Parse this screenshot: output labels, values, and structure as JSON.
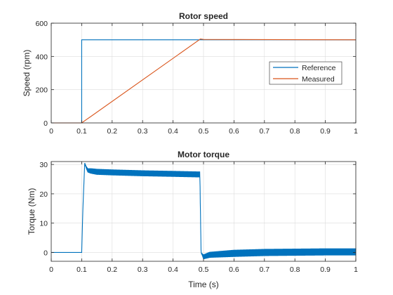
{
  "chart_data": [
    {
      "type": "line",
      "title": "Rotor speed",
      "xlabel": "",
      "ylabel": "Speed (rpm)",
      "xlim": [
        0,
        1
      ],
      "ylim": [
        0,
        600
      ],
      "xticks": [
        0,
        0.1,
        0.2,
        0.3,
        0.4,
        0.5,
        0.6,
        0.7,
        0.8,
        0.9,
        1
      ],
      "xtick_labels": [
        "0",
        "0.1",
        "0.2",
        "0.3",
        "0.4",
        "0.5",
        "0.6",
        "0.7",
        "0.8",
        "0.9",
        "1"
      ],
      "yticks": [
        0,
        200,
        400,
        600
      ],
      "ytick_labels": [
        "0",
        "200",
        "400",
        "600"
      ],
      "grid": true,
      "legend": "center-right",
      "series": [
        {
          "name": "Reference",
          "color": "#0072BD",
          "x": [
            0,
            0.1,
            0.1,
            1.0
          ],
          "y": [
            0,
            0,
            500,
            500
          ]
        },
        {
          "name": "Measured",
          "color": "#D95319",
          "x": [
            0,
            0.1,
            0.49,
            0.5,
            1.0
          ],
          "y": [
            0,
            0,
            505,
            502,
            500
          ]
        }
      ]
    },
    {
      "type": "line",
      "title": "Motor torque",
      "xlabel": "Time (s)",
      "ylabel": "Torque (Nm)",
      "xlim": [
        0,
        1
      ],
      "ylim": [
        -3,
        31
      ],
      "xticks": [
        0,
        0.1,
        0.2,
        0.3,
        0.4,
        0.5,
        0.6,
        0.7,
        0.8,
        0.9,
        1
      ],
      "xtick_labels": [
        "0",
        "0.1",
        "0.2",
        "0.3",
        "0.4",
        "0.5",
        "0.6",
        "0.7",
        "0.8",
        "0.9",
        "1"
      ],
      "yticks": [
        0,
        10,
        20,
        30
      ],
      "ytick_labels": [
        "0",
        "10",
        "20",
        "30"
      ],
      "grid": true,
      "series": [
        {
          "name": "Torque",
          "color": "#0072BD",
          "x": [
            0,
            0.1,
            0.104,
            0.11,
            0.115,
            0.12,
            0.13,
            0.15,
            0.2,
            0.3,
            0.4,
            0.488,
            0.492,
            0.5,
            0.52,
            0.6,
            0.7,
            0.8,
            0.9,
            1.0
          ],
          "y": [
            0,
            0,
            15,
            30.5,
            29,
            28,
            27.8,
            27.5,
            27.3,
            27.0,
            26.8,
            26.6,
            0,
            -1.5,
            -0.8,
            -0.3,
            0,
            0.1,
            0.2,
            0.2
          ],
          "ripple": [
            0,
            0,
            0,
            0,
            0.4,
            0.7,
            0.9,
            1.0,
            1.0,
            1.0,
            1.0,
            1.0,
            0,
            0.8,
            1.0,
            1.2,
            1.2,
            1.2,
            1.2,
            1.2
          ]
        }
      ]
    }
  ]
}
